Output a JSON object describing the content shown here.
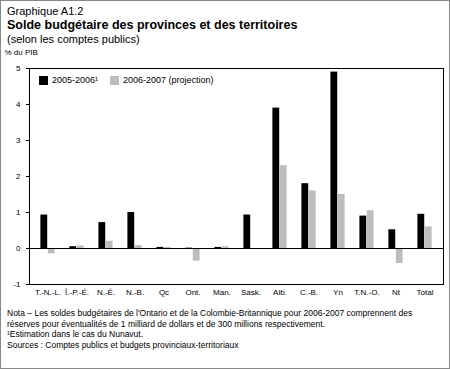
{
  "chart_data": {
    "type": "bar",
    "figure_number": "Graphique A1.2",
    "title": "Solde budgétaire des provinces et des territoires",
    "subtitle": "(selon les comptes publics)",
    "y_label": "% du PIB",
    "categories": [
      "T.-N.-L.",
      "Î.-P.-É.",
      "N.-É.",
      "N.-B.",
      "Qc",
      "Ont.",
      "Man.",
      "Sask.",
      "Alb.",
      "C.-B.",
      "Yn",
      "T.N.-O.",
      "Nt",
      "Total"
    ],
    "series": [
      {
        "name": "2005-2006¹",
        "color": "#000000",
        "values": [
          0.93,
          0.05,
          0.72,
          1.0,
          0.03,
          0.01,
          0.03,
          0.93,
          3.9,
          1.8,
          4.9,
          0.9,
          0.52,
          0.95
        ]
      },
      {
        "name": "2006-2007 (projection)",
        "color": "#bdbdbd",
        "values": [
          -0.15,
          0.07,
          0.2,
          0.08,
          0.03,
          -0.35,
          0.05,
          0.0,
          2.3,
          1.6,
          1.5,
          1.05,
          -0.42,
          0.6
        ]
      }
    ],
    "ylim": [
      -1,
      5
    ],
    "yticks": [
      -1,
      0,
      1,
      2,
      3,
      4,
      5
    ],
    "grid": false,
    "legend": "upper left",
    "notes": [
      "Nota – Les soldes budgétaires de l'Ontario et de la Colombie-Britannique pour 2006-2007 comprennent des réserves pour éventualités de 1 milliard de dollars et de 300 millions respectivement.",
      "¹Estimation dans le cas du Nunavut.",
      "Sources : Comptes publics et budgets provinciaux-territoriaux"
    ]
  }
}
